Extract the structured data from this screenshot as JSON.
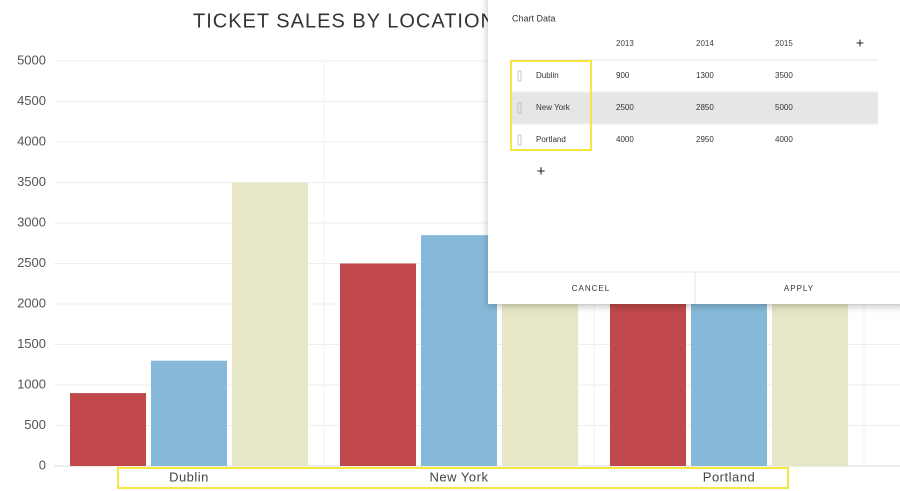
{
  "chart_data": {
    "type": "bar",
    "title": "TICKET SALES BY LOCATION (",
    "categories": [
      "Dublin",
      "New York",
      "Portland"
    ],
    "series": [
      {
        "name": "2013",
        "color": "#c0484b",
        "values": [
          900,
          2500,
          4000
        ]
      },
      {
        "name": "2014",
        "color": "#86b9d9",
        "values": [
          1300,
          2850,
          2950
        ]
      },
      {
        "name": "2015",
        "color": "#e7e6c6",
        "values": [
          3500,
          5000,
          4000
        ]
      }
    ],
    "ylim": [
      0,
      5000
    ],
    "yticks": [
      0,
      500,
      1000,
      1500,
      2000,
      2500,
      3000,
      3500,
      4000,
      4500,
      5000
    ],
    "grid": true
  },
  "dialog": {
    "title": "Chart Data",
    "cancel": "CANCEL",
    "apply": "APPLY"
  }
}
